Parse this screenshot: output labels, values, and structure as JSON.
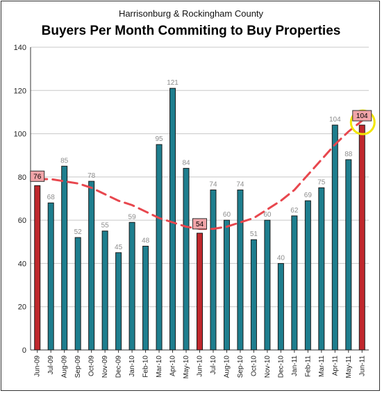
{
  "chart_data": {
    "type": "bar",
    "subtitle": "Harrisonburg & Rockingham County",
    "title": "Buyers Per Month Commiting to Buy Properties",
    "xlabel": "",
    "ylabel": "",
    "ylim": [
      0,
      140
    ],
    "yticks": [
      0,
      20,
      40,
      60,
      80,
      100,
      120,
      140
    ],
    "grid": true,
    "categories": [
      "Jun-09",
      "Jul-09",
      "Aug-09",
      "Sep-09",
      "Oct-09",
      "Nov-09",
      "Dec-09",
      "Jan-10",
      "Feb-10",
      "Mar-10",
      "Apr-10",
      "May-10",
      "Jun-10",
      "Jul-10",
      "Aug-10",
      "Sep-10",
      "Oct-10",
      "Nov-10",
      "Dec-10",
      "Jan-11",
      "Feb-11",
      "Mar-11",
      "Apr-11",
      "May-11",
      "Jun-11"
    ],
    "values": [
      76,
      68,
      85,
      52,
      78,
      55,
      45,
      59,
      48,
      95,
      121,
      84,
      54,
      74,
      60,
      74,
      51,
      60,
      40,
      62,
      69,
      75,
      104,
      88,
      104
    ],
    "highlighted": [
      "Jun-09",
      "Jun-10",
      "Jun-11"
    ],
    "trend_values": [
      79,
      79,
      78,
      77,
      75,
      72,
      69,
      67,
      64,
      61,
      59,
      57,
      56,
      56,
      57,
      59,
      61,
      65,
      69,
      74,
      81,
      88,
      95,
      101,
      106
    ],
    "colors": {
      "bar": "#1e7e8e",
      "highlight_bar": "#c0282d",
      "highlight_label_bg": "#f1a4a8",
      "trend": "#e8474e",
      "circle": "#f2e600"
    }
  }
}
